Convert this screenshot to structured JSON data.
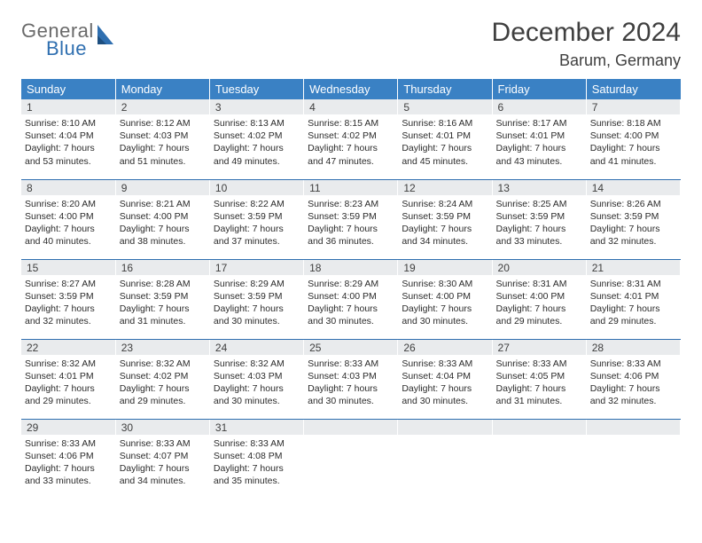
{
  "logo": {
    "line1": "General",
    "line2": "Blue"
  },
  "title": "December 2024",
  "location": "Barum, Germany",
  "colors": {
    "header_bg": "#3a81c4",
    "header_text": "#ffffff",
    "daynum_bg": "#e9ebed",
    "border": "#2f6fb0",
    "logo_gray": "#6a6a6a",
    "logo_blue": "#2f6fb0"
  },
  "weekdays": [
    "Sunday",
    "Monday",
    "Tuesday",
    "Wednesday",
    "Thursday",
    "Friday",
    "Saturday"
  ],
  "weeks": [
    [
      {
        "n": "1",
        "sunrise": "8:10 AM",
        "sunset": "4:04 PM",
        "daylight": "7 hours and 53 minutes."
      },
      {
        "n": "2",
        "sunrise": "8:12 AM",
        "sunset": "4:03 PM",
        "daylight": "7 hours and 51 minutes."
      },
      {
        "n": "3",
        "sunrise": "8:13 AM",
        "sunset": "4:02 PM",
        "daylight": "7 hours and 49 minutes."
      },
      {
        "n": "4",
        "sunrise": "8:15 AM",
        "sunset": "4:02 PM",
        "daylight": "7 hours and 47 minutes."
      },
      {
        "n": "5",
        "sunrise": "8:16 AM",
        "sunset": "4:01 PM",
        "daylight": "7 hours and 45 minutes."
      },
      {
        "n": "6",
        "sunrise": "8:17 AM",
        "sunset": "4:01 PM",
        "daylight": "7 hours and 43 minutes."
      },
      {
        "n": "7",
        "sunrise": "8:18 AM",
        "sunset": "4:00 PM",
        "daylight": "7 hours and 41 minutes."
      }
    ],
    [
      {
        "n": "8",
        "sunrise": "8:20 AM",
        "sunset": "4:00 PM",
        "daylight": "7 hours and 40 minutes."
      },
      {
        "n": "9",
        "sunrise": "8:21 AM",
        "sunset": "4:00 PM",
        "daylight": "7 hours and 38 minutes."
      },
      {
        "n": "10",
        "sunrise": "8:22 AM",
        "sunset": "3:59 PM",
        "daylight": "7 hours and 37 minutes."
      },
      {
        "n": "11",
        "sunrise": "8:23 AM",
        "sunset": "3:59 PM",
        "daylight": "7 hours and 36 minutes."
      },
      {
        "n": "12",
        "sunrise": "8:24 AM",
        "sunset": "3:59 PM",
        "daylight": "7 hours and 34 minutes."
      },
      {
        "n": "13",
        "sunrise": "8:25 AM",
        "sunset": "3:59 PM",
        "daylight": "7 hours and 33 minutes."
      },
      {
        "n": "14",
        "sunrise": "8:26 AM",
        "sunset": "3:59 PM",
        "daylight": "7 hours and 32 minutes."
      }
    ],
    [
      {
        "n": "15",
        "sunrise": "8:27 AM",
        "sunset": "3:59 PM",
        "daylight": "7 hours and 32 minutes."
      },
      {
        "n": "16",
        "sunrise": "8:28 AM",
        "sunset": "3:59 PM",
        "daylight": "7 hours and 31 minutes."
      },
      {
        "n": "17",
        "sunrise": "8:29 AM",
        "sunset": "3:59 PM",
        "daylight": "7 hours and 30 minutes."
      },
      {
        "n": "18",
        "sunrise": "8:29 AM",
        "sunset": "4:00 PM",
        "daylight": "7 hours and 30 minutes."
      },
      {
        "n": "19",
        "sunrise": "8:30 AM",
        "sunset": "4:00 PM",
        "daylight": "7 hours and 30 minutes."
      },
      {
        "n": "20",
        "sunrise": "8:31 AM",
        "sunset": "4:00 PM",
        "daylight": "7 hours and 29 minutes."
      },
      {
        "n": "21",
        "sunrise": "8:31 AM",
        "sunset": "4:01 PM",
        "daylight": "7 hours and 29 minutes."
      }
    ],
    [
      {
        "n": "22",
        "sunrise": "8:32 AM",
        "sunset": "4:01 PM",
        "daylight": "7 hours and 29 minutes."
      },
      {
        "n": "23",
        "sunrise": "8:32 AM",
        "sunset": "4:02 PM",
        "daylight": "7 hours and 29 minutes."
      },
      {
        "n": "24",
        "sunrise": "8:32 AM",
        "sunset": "4:03 PM",
        "daylight": "7 hours and 30 minutes."
      },
      {
        "n": "25",
        "sunrise": "8:33 AM",
        "sunset": "4:03 PM",
        "daylight": "7 hours and 30 minutes."
      },
      {
        "n": "26",
        "sunrise": "8:33 AM",
        "sunset": "4:04 PM",
        "daylight": "7 hours and 30 minutes."
      },
      {
        "n": "27",
        "sunrise": "8:33 AM",
        "sunset": "4:05 PM",
        "daylight": "7 hours and 31 minutes."
      },
      {
        "n": "28",
        "sunrise": "8:33 AM",
        "sunset": "4:06 PM",
        "daylight": "7 hours and 32 minutes."
      }
    ],
    [
      {
        "n": "29",
        "sunrise": "8:33 AM",
        "sunset": "4:06 PM",
        "daylight": "7 hours and 33 minutes."
      },
      {
        "n": "30",
        "sunrise": "8:33 AM",
        "sunset": "4:07 PM",
        "daylight": "7 hours and 34 minutes."
      },
      {
        "n": "31",
        "sunrise": "8:33 AM",
        "sunset": "4:08 PM",
        "daylight": "7 hours and 35 minutes."
      },
      null,
      null,
      null,
      null
    ]
  ],
  "labels": {
    "sunrise": "Sunrise: ",
    "sunset": "Sunset: ",
    "daylight": "Daylight: "
  }
}
